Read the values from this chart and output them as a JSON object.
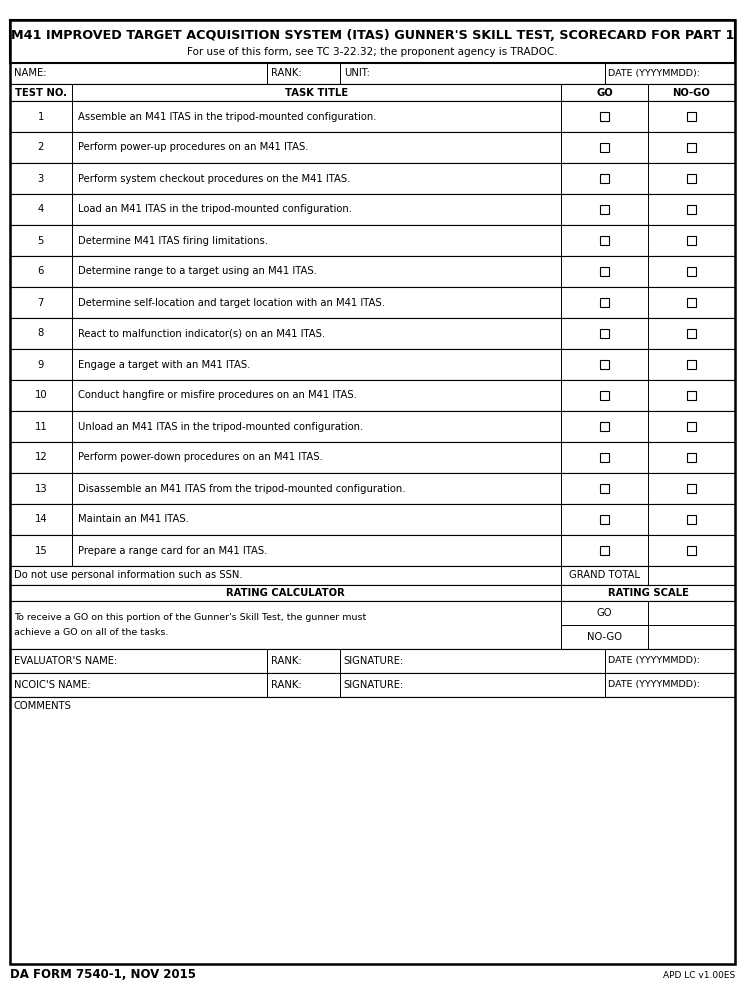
{
  "title": "M41 IMPROVED TARGET ACQUISITION SYSTEM (ITAS) GUNNER'S SKILL TEST, SCORECARD FOR PART 1",
  "subtitle": "For use of this form, see TC 3-22.32; the proponent agency is TRADOC.",
  "form_id": "DA FORM 7540-1, NOV 2015",
  "apd": "APD LC v1.00ES",
  "header_fields": [
    "NAME:",
    "RANK:",
    "UNIT:",
    "DATE (YYYYMMDD):"
  ],
  "col_headers": [
    "TEST NO.",
    "TASK TITLE",
    "GO",
    "NO-GO"
  ],
  "tasks": [
    [
      1,
      "Assemble an M41 ITAS in the tripod-mounted configuration."
    ],
    [
      2,
      "Perform power-up procedures on an M41 ITAS."
    ],
    [
      3,
      "Perform system checkout procedures on the M41 ITAS."
    ],
    [
      4,
      "Load an M41 ITAS in the tripod-mounted configuration."
    ],
    [
      5,
      "Determine M41 ITAS firing limitations."
    ],
    [
      6,
      "Determine range to a target using an M41 ITAS."
    ],
    [
      7,
      "Determine self-location and target location with an M41 ITAS."
    ],
    [
      8,
      "React to malfunction indicator(s) on an M41 ITAS."
    ],
    [
      9,
      "Engage a target with an M41 ITAS."
    ],
    [
      10,
      "Conduct hangfire or misfire procedures on an M41 ITAS."
    ],
    [
      11,
      "Unload an M41 ITAS in the tripod-mounted configuration."
    ],
    [
      12,
      "Perform power-down procedures on an M41 ITAS."
    ],
    [
      13,
      "Disassemble an M41 ITAS from the tripod-mounted configuration."
    ],
    [
      14,
      "Maintain an M41 ITAS."
    ],
    [
      15,
      "Prepare a range card for an M41 ITAS."
    ]
  ],
  "footer_note": "Do not use personal information such as SSN.",
  "grand_total_label": "GRAND TOTAL",
  "rating_calculator_label": "RATING CALCULATOR",
  "rating_scale_label": "RATING SCALE",
  "rating_text_line1": "To receive a GO on this portion of the Gunner's Skill Test, the gunner must",
  "rating_text_line2": "achieve a GO on all of the tasks.",
  "go_label": "GO",
  "nogo_label": "NO-GO",
  "evaluator_name_label": "EVALUATOR'S NAME:",
  "evaluator_rank_label": "RANK:",
  "evaluator_sig_label": "SIGNATURE:",
  "evaluator_date_label": "DATE (YYYYMMDD):",
  "ncoic_name_label": "NCOIC'S NAME:",
  "ncoic_rank_label": "RANK:",
  "ncoic_sig_label": "SIGNATURE:",
  "ncoic_date_label": "DATE (YYYYMMDD):",
  "comments_label": "COMMENTS",
  "bg_color": "#ffffff",
  "text_color": "#000000",
  "title_fontsize": 9.2,
  "subtitle_fontsize": 7.5,
  "body_fontsize": 7.2,
  "small_fontsize": 6.8,
  "label_fontsize": 7.2
}
